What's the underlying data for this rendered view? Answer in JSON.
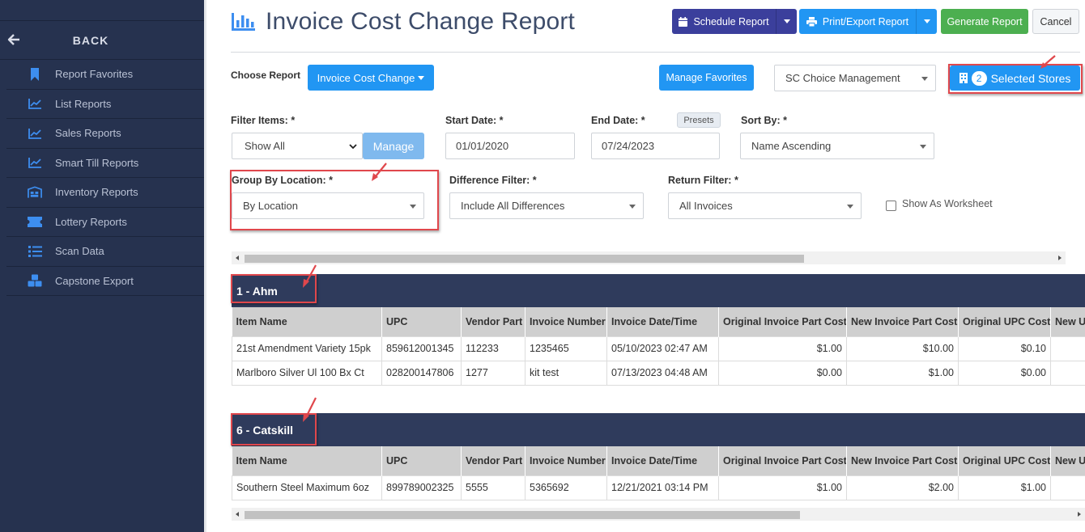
{
  "sidebar": {
    "back_label": "BACK",
    "items": [
      {
        "label": "Report Favorites",
        "icon": "bookmark-icon"
      },
      {
        "label": "List Reports",
        "icon": "line-chart-icon"
      },
      {
        "label": "Sales Reports",
        "icon": "line-chart-icon"
      },
      {
        "label": "Smart Till Reports",
        "icon": "line-chart-icon"
      },
      {
        "label": "Inventory Reports",
        "icon": "warehouse-icon"
      },
      {
        "label": "Lottery Reports",
        "icon": "ticket-icon"
      },
      {
        "label": "Scan Data",
        "icon": "list-icon"
      },
      {
        "label": "Capstone Export",
        "icon": "boxes-icon"
      }
    ]
  },
  "header": {
    "title": "Invoice Cost Change Report",
    "buttons": {
      "schedule": "Schedule Report",
      "print_export": "Print/Export Report",
      "generate": "Generate Report",
      "cancel": "Cancel"
    }
  },
  "toolbar": {
    "choose_report_label": "Choose Report",
    "report_select": "Invoice Cost Change",
    "manage_favorites": "Manage Favorites",
    "company_select": "SC Choice Management",
    "selected_stores_count": "2",
    "selected_stores_label": "Selected Stores"
  },
  "filters": {
    "filter_items": {
      "label": "Filter Items: *",
      "value": "Show All",
      "manage": "Manage"
    },
    "start_date": {
      "label": "Start Date: *",
      "value": "01/01/2020"
    },
    "end_date": {
      "label": "End Date: *",
      "value": "07/24/2023",
      "presets": "Presets"
    },
    "sort_by": {
      "label": "Sort By: *",
      "value": "Name Ascending"
    },
    "group_by": {
      "label": "Group By Location: *",
      "value": "By Location"
    },
    "difference": {
      "label": "Difference Filter: *",
      "value": "Include All Differences"
    },
    "return": {
      "label": "Return Filter: *",
      "value": "All Invoices"
    },
    "worksheet": {
      "label": "Show As Worksheet",
      "checked": false
    }
  },
  "table_columns": [
    "Item Name",
    "UPC",
    "Vendor Part",
    "Invoice Number",
    "Invoice Date/Time",
    "Original Invoice Part Cost",
    "New Invoice Part Cost",
    "Original UPC Cost",
    "New U"
  ],
  "groups": [
    {
      "title": "1 - Ahm",
      "rows": [
        [
          "21st Amendment Variety 15pk",
          "859612001345",
          "112233",
          "1235465",
          "05/10/2023 02:47 AM",
          "$1.00",
          "$10.00",
          "$0.10",
          ""
        ],
        [
          "Marlboro Silver Ul 100 Bx Ct",
          "028200147806",
          "1277",
          "kit test",
          "07/13/2023 04:48 AM",
          "$0.00",
          "$1.00",
          "$0.00",
          ""
        ]
      ]
    },
    {
      "title": "6 - Catskill",
      "rows": [
        [
          "Southern Steel Maximum 6oz",
          "899789002325",
          "5555",
          "5365692",
          "12/21/2021 03:14 PM",
          "$1.00",
          "$2.00",
          "$1.00",
          ""
        ]
      ]
    }
  ],
  "colors": {
    "sidebar_bg": "#26324f",
    "navy_button": "#3b3f9c",
    "blue_button": "#2196f3",
    "green_button": "#4caf50",
    "group_header": "#2f3b5c",
    "annotation_red": "#e0474c"
  }
}
